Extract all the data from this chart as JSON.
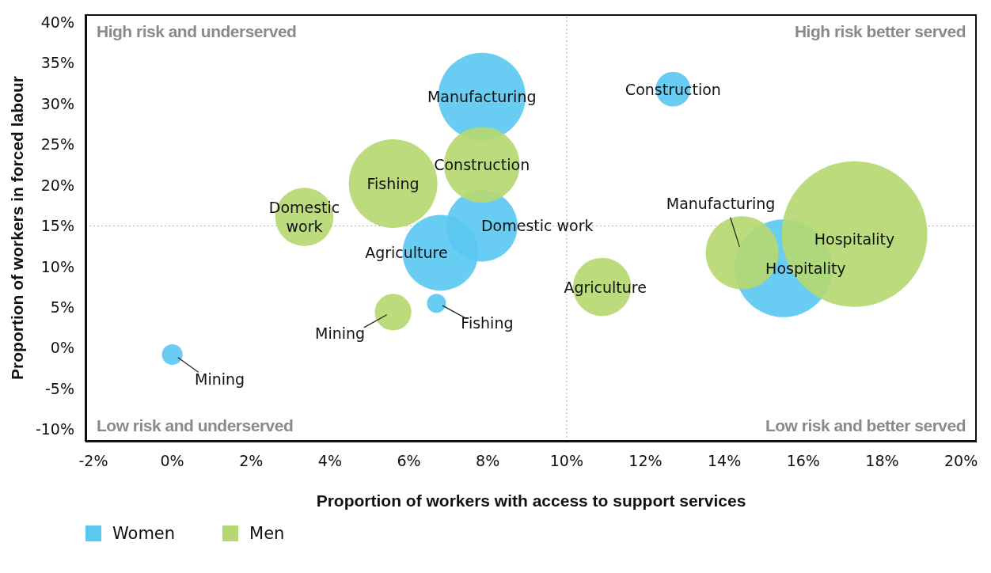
{
  "chart_data": {
    "type": "bubble",
    "xlabel": "Proportion of workers with access to support services",
    "ylabel": "Proportion of workers in forced labour",
    "xlim": [
      -2.2,
      20.4
    ],
    "ylim": [
      -11.5,
      41
    ],
    "xticks": [
      {
        "value": -2,
        "label": "-2%"
      },
      {
        "value": 0,
        "label": "0%"
      },
      {
        "value": 2,
        "label": "2%"
      },
      {
        "value": 4,
        "label": "4%"
      },
      {
        "value": 6,
        "label": "6%"
      },
      {
        "value": 8,
        "label": "8%"
      },
      {
        "value": 10,
        "label": "10%"
      },
      {
        "value": 12,
        "label": "12%"
      },
      {
        "value": 14,
        "label": "14%"
      },
      {
        "value": 16,
        "label": "16%"
      },
      {
        "value": 18,
        "label": "18%"
      },
      {
        "value": 20,
        "label": "20%"
      }
    ],
    "yticks": [
      {
        "value": -10,
        "label": "-10%"
      },
      {
        "value": -5,
        "label": "-5%"
      },
      {
        "value": 0,
        "label": "0%"
      },
      {
        "value": 5,
        "label": "5%"
      },
      {
        "value": 10,
        "label": "10%"
      },
      {
        "value": 15,
        "label": "15%"
      },
      {
        "value": 20,
        "label": "20%"
      },
      {
        "value": 25,
        "label": "25%"
      },
      {
        "value": 30,
        "label": "30%"
      },
      {
        "value": 35,
        "label": "35%"
      },
      {
        "value": 40,
        "label": "40%"
      }
    ],
    "grid": false,
    "legend": "bottom left",
    "series": [
      {
        "name": "Women",
        "color": "#5bc8f2",
        "x": [
          7.85,
          12.7,
          7.85,
          6.8,
          6.7,
          0,
          15.5
        ],
        "values": [
          30.9,
          31.8,
          15.0,
          11.7,
          5.5,
          -0.8,
          9.8
        ],
        "sizes": [
          0.36,
          0.057,
          0.24,
          0.27,
          0.017,
          0.02,
          0.45
        ]
      },
      {
        "name": "Men",
        "color": "#b5d872",
        "x": [
          5.6,
          7.85,
          3.35,
          5.6,
          10.9,
          14.45,
          17.3
        ],
        "values": [
          20.2,
          22.5,
          16.1,
          4.4,
          7.5,
          11.7,
          14.0
        ],
        "sizes": [
          0.37,
          0.27,
          0.16,
          0.063,
          0.16,
          0.25,
          1
        ]
      }
    ],
    "ref_lines": [
      {
        "axis": "x",
        "value": 10,
        "color": "#aaaaaa",
        "line_style": "dotted"
      },
      {
        "axis": "y",
        "value": 15,
        "color": "#aaaaaa",
        "line_style": "dotted"
      }
    ],
    "annotations": [
      "High risk and underserved",
      "High risk better served",
      "Low risk and underserved",
      "Low risk and better served",
      {
        "text": "Manufacturing",
        "x": 7.85,
        "y": 30.9
      },
      {
        "text": "Construction",
        "x": 12.7,
        "y": 31.8
      },
      {
        "text": "Domestic work",
        "x": 7.85,
        "y": 15.0
      },
      {
        "text": "Agriculture",
        "x": 6.8,
        "y": 11.7
      },
      {
        "text": "Fishing",
        "x": 6.7,
        "y": 5.5
      },
      {
        "text": "Mining",
        "x": 0,
        "y": -0.8
      },
      {
        "text": "Hospitality",
        "x": 15.5,
        "y": 9.8
      },
      {
        "text": "Fishing",
        "x": 5.6,
        "y": 20.2
      },
      {
        "text": "Construction",
        "x": 7.85,
        "y": 22.5
      },
      {
        "text": "Domestic work",
        "x": 3.35,
        "y": 16.1
      },
      {
        "text": "Mining",
        "x": 5.6,
        "y": 4.4
      },
      {
        "text": "Agriculture",
        "x": 10.9,
        "y": 7.5
      },
      {
        "text": "Manufacturing",
        "x": 14.45,
        "y": 11.7
      },
      {
        "text": "Hospitality",
        "x": 17.3,
        "y": 14.0
      }
    ]
  }
}
